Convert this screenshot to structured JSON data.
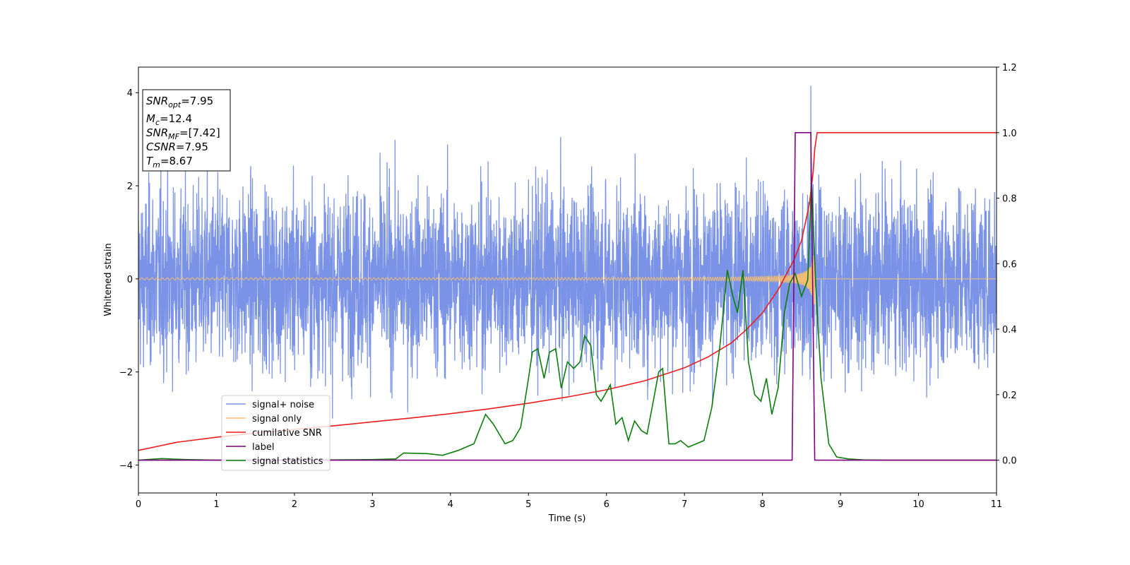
{
  "chart_data": {
    "type": "line",
    "xlabel": "Time (s)",
    "ylabel_left": "Whitened strain",
    "ylabel_right": "",
    "xlim": [
      0,
      11
    ],
    "ylim_left": [
      -4.6,
      4.55
    ],
    "ylim_right": [
      -0.1,
      1.2
    ],
    "x_ticks": [
      "0",
      "1",
      "2",
      "3",
      "4",
      "5",
      "6",
      "7",
      "8",
      "9",
      "10",
      "11"
    ],
    "y_ticks_left": [
      "−4",
      "−2",
      "0",
      "2",
      "4"
    ],
    "y_ticks_right": [
      "0.0",
      "0.2",
      "0.4",
      "0.6",
      "0.8",
      "1.0",
      "1.2"
    ],
    "grid": false,
    "legend_position": "lower-left",
    "info_box": {
      "lines": [
        {
          "sym": "SNR",
          "sub": "opt",
          "val": "=7.95"
        },
        {
          "sym": "M",
          "sub": "c",
          "val": "=12.4"
        },
        {
          "sym": "SNR",
          "sub": "MF",
          "val": "=[7.42]"
        },
        {
          "sym": "CSNR",
          "sub": "",
          "val": "=7.95"
        },
        {
          "sym": "T",
          "sub": "m",
          "val": "=8.67"
        }
      ]
    },
    "series": [
      {
        "name": "signal+ noise",
        "axis": "left",
        "color": "#7a93e6",
        "kind": "noise",
        "amplitude_std": 0.95,
        "peak": 4.15,
        "peak_time": 8.62
      },
      {
        "name": "signal only",
        "axis": "left",
        "color": "#f5be72",
        "kind": "chirp",
        "start_amp": 0.02,
        "end_amp": 0.55,
        "merger_time": 8.67
      },
      {
        "name": "cumilative SNR",
        "axis": "right",
        "color": "#ee1c1c",
        "x": [
          0,
          0.5,
          1,
          1.5,
          2,
          2.5,
          3,
          3.5,
          4,
          4.5,
          5,
          5.5,
          6,
          6.5,
          7,
          7.3,
          7.6,
          7.8,
          8.0,
          8.2,
          8.4,
          8.5,
          8.6,
          8.65,
          8.67,
          8.7,
          11
        ],
        "y": [
          0.03,
          0.055,
          0.07,
          0.083,
          0.094,
          0.105,
          0.117,
          0.129,
          0.142,
          0.157,
          0.174,
          0.193,
          0.215,
          0.243,
          0.282,
          0.315,
          0.358,
          0.4,
          0.45,
          0.52,
          0.61,
          0.67,
          0.78,
          0.88,
          0.95,
          1.0,
          1.0
        ]
      },
      {
        "name": "label",
        "axis": "right",
        "color": "#800080",
        "x": [
          0,
          8.38,
          8.42,
          8.62,
          8.67,
          11
        ],
        "y": [
          0.0,
          0.0,
          1.0,
          1.0,
          0.0,
          0.0
        ]
      },
      {
        "name": "signal statistics",
        "axis": "right",
        "color": "#0b7d0b",
        "x": [
          0,
          0.3,
          0.6,
          1.0,
          1.5,
          2.0,
          2.5,
          3.0,
          3.3,
          3.4,
          3.7,
          3.9,
          4.1,
          4.3,
          4.45,
          4.55,
          4.7,
          4.8,
          4.9,
          5.0,
          5.05,
          5.12,
          5.2,
          5.27,
          5.35,
          5.42,
          5.5,
          5.58,
          5.66,
          5.72,
          5.8,
          5.87,
          5.93,
          5.98,
          6.05,
          6.12,
          6.2,
          6.28,
          6.36,
          6.45,
          6.52,
          6.6,
          6.67,
          6.72,
          6.8,
          6.88,
          6.95,
          7.05,
          7.15,
          7.25,
          7.35,
          7.45,
          7.55,
          7.62,
          7.68,
          7.75,
          7.82,
          7.9,
          7.98,
          8.05,
          8.12,
          8.2,
          8.28,
          8.35,
          8.42,
          8.5,
          8.58,
          8.63,
          8.68,
          8.75,
          8.85,
          8.95,
          9.1,
          9.3,
          9.6,
          10.0,
          10.5,
          11.0
        ],
        "y": [
          0.0,
          0.005,
          0.002,
          0.0,
          0.001,
          0.0,
          0.001,
          0.002,
          0.004,
          0.022,
          0.02,
          0.015,
          0.03,
          0.05,
          0.14,
          0.11,
          0.05,
          0.06,
          0.1,
          0.25,
          0.33,
          0.34,
          0.25,
          0.33,
          0.34,
          0.22,
          0.3,
          0.28,
          0.3,
          0.38,
          0.35,
          0.2,
          0.18,
          0.2,
          0.23,
          0.11,
          0.13,
          0.06,
          0.12,
          0.09,
          0.08,
          0.18,
          0.27,
          0.28,
          0.05,
          0.05,
          0.06,
          0.04,
          0.05,
          0.06,
          0.16,
          0.34,
          0.58,
          0.5,
          0.45,
          0.58,
          0.3,
          0.2,
          0.18,
          0.25,
          0.14,
          0.22,
          0.45,
          0.54,
          0.57,
          0.5,
          0.55,
          0.85,
          0.55,
          0.25,
          0.05,
          0.01,
          0.004,
          0.001,
          0.0,
          0.0,
          0.0,
          0.0
        ]
      }
    ]
  }
}
